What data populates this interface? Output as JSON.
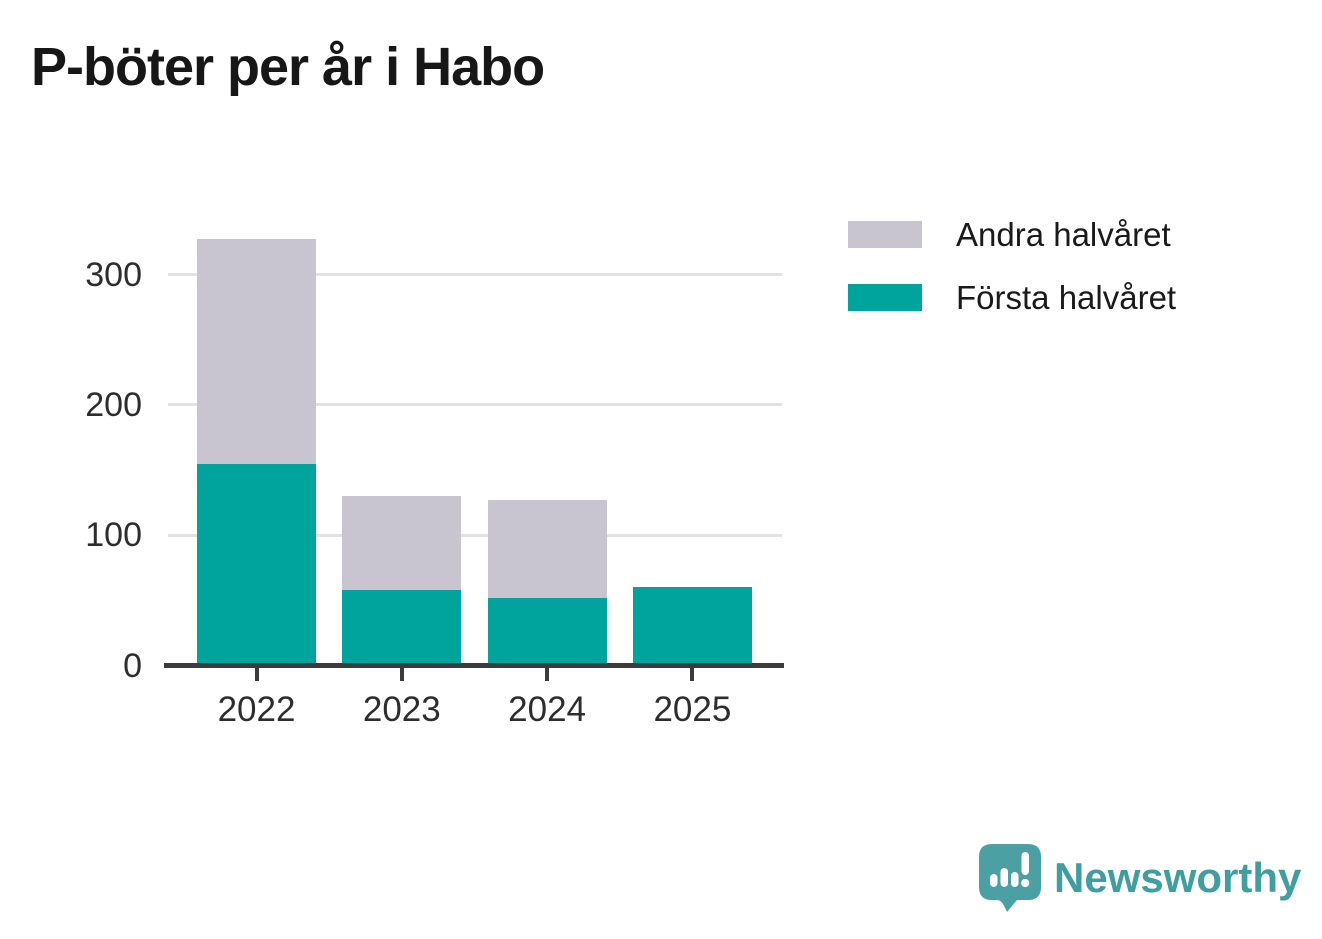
{
  "title": "P-böter per år i Habo",
  "chart_data": {
    "type": "bar",
    "stacked": true,
    "title": "P-böter per år i Habo",
    "categories": [
      "2022",
      "2023",
      "2024",
      "2025"
    ],
    "series": [
      {
        "name": "Första halvåret",
        "color": "#00a49c",
        "values": [
          155,
          58,
          52,
          60
        ]
      },
      {
        "name": "Andra halvåret",
        "color": "#c8c5d1",
        "values": [
          172,
          72,
          75,
          0
        ]
      }
    ],
    "xlabel": "",
    "ylabel": "",
    "ylim": [
      0,
      340
    ],
    "yticks": [
      0,
      100,
      200,
      300
    ],
    "grid": "horizontal",
    "legend_position": "right"
  },
  "legend": {
    "items": [
      {
        "label": "Andra halvåret",
        "color": "#c8c5d1"
      },
      {
        "label": "Första halvåret",
        "color": "#00a49c"
      }
    ]
  },
  "branding": {
    "logo_text": "Newsworthy",
    "logo_color": "#3e9ea0",
    "icon_color": "#4aa0a3",
    "icon_name": "newsworthy-speech-bubble-chart-icon"
  },
  "colors": {
    "axis": "#3b3b3b",
    "gridline": "#e2e2e2",
    "tick_text": "#2d2d2d",
    "title_text": "#171717",
    "background": "#ffffff"
  }
}
